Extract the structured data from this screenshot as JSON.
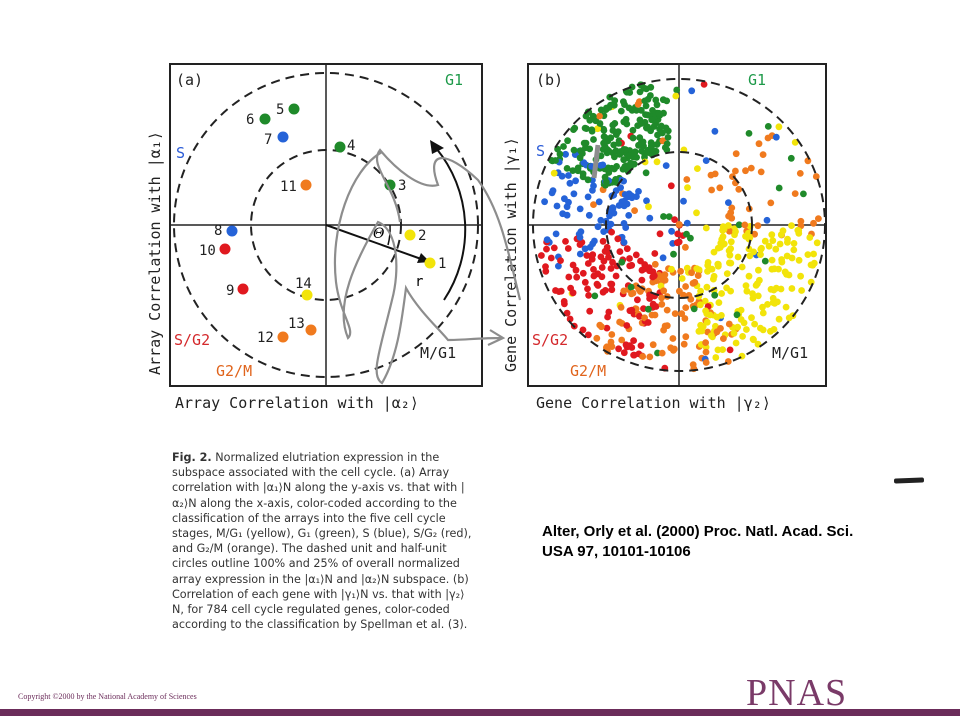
{
  "panel_a": {
    "label": "(a)",
    "quadrant_labels": {
      "g1": "G1",
      "s": "S",
      "sg2": "S/G2",
      "g2m": "G2/M",
      "mg1": "M/G1"
    },
    "x_axis_label": "Array Correlation with |α₂⟩",
    "y_axis_label": "Array Correlation with |α₁⟩",
    "theta_label": "Θ",
    "r_label": "r",
    "points": [
      {
        "label": "1",
        "color": "#f2e40a"
      },
      {
        "label": "2",
        "color": "#f2e40a"
      },
      {
        "label": "3",
        "color": "#1f8a2a"
      },
      {
        "label": "4",
        "color": "#1f8a2a"
      },
      {
        "label": "5",
        "color": "#1f8a2a"
      },
      {
        "label": "6",
        "color": "#1f8a2a"
      },
      {
        "label": "7",
        "color": "#2563d8"
      },
      {
        "label": "8",
        "color": "#2563d8"
      },
      {
        "label": "9",
        "color": "#e0191f"
      },
      {
        "label": "10",
        "color": "#e0191f"
      },
      {
        "label": "11",
        "color": "#f07a1e"
      },
      {
        "label": "12",
        "color": "#f07a1e"
      },
      {
        "label": "13",
        "color": "#f07a1e"
      },
      {
        "label": "14",
        "color": "#f2e40a"
      }
    ]
  },
  "panel_b": {
    "label": "(b)",
    "quadrant_labels": {
      "g1": "G1",
      "s": "S",
      "sg2": "S/G2",
      "g2m": "G2/M",
      "mg1": "M/G1"
    },
    "x_axis_label": "Gene Correlation with |γ₂⟩",
    "y_axis_label": "Gene Correlation with |γ₁⟩",
    "gene_count": 784
  },
  "caption": {
    "fig_label": "Fig. 2.",
    "text": "Normalized elutriation expression in the subspace associated with the cell cycle. (a) Array correlation with |α₁⟩N along the y-axis vs. that with |α₂⟩N along the x-axis, color-coded according to the classification of the arrays into the five cell cycle stages, M/G₁ (yellow), G₁ (green), S (blue), S/G₂ (red), and G₂/M (orange). The dashed unit and half-unit circles outline 100% and 25% of overall normalized array expression in the |α₁⟩N and |α₂⟩N subspace. (b) Correlation of each gene with |γ₁⟩N vs. that with |γ₂⟩N, for 784 cell cycle regulated genes, color-coded according to the classification by Spellman et al. (3)."
  },
  "citation": {
    "line1": "Alter, Orly et al. (2000) Proc. Natl. Acad. Sci.",
    "line2": "USA 97, 10101-10106"
  },
  "footer": {
    "copyright": "Copyright ©2000 by the National Academy of Sciences",
    "journal": "PNAS"
  },
  "colors": {
    "m_g1": "#f2e40a",
    "g1": "#1f8a2a",
    "s": "#2563d8",
    "s_g2": "#e0191f",
    "g2_m": "#f07a1e",
    "label_green": "#1e9a4a",
    "label_blue": "#2a5bd7",
    "label_red": "#d4292c",
    "label_orange": "#e0641c",
    "brand": "#6b2c5a"
  }
}
